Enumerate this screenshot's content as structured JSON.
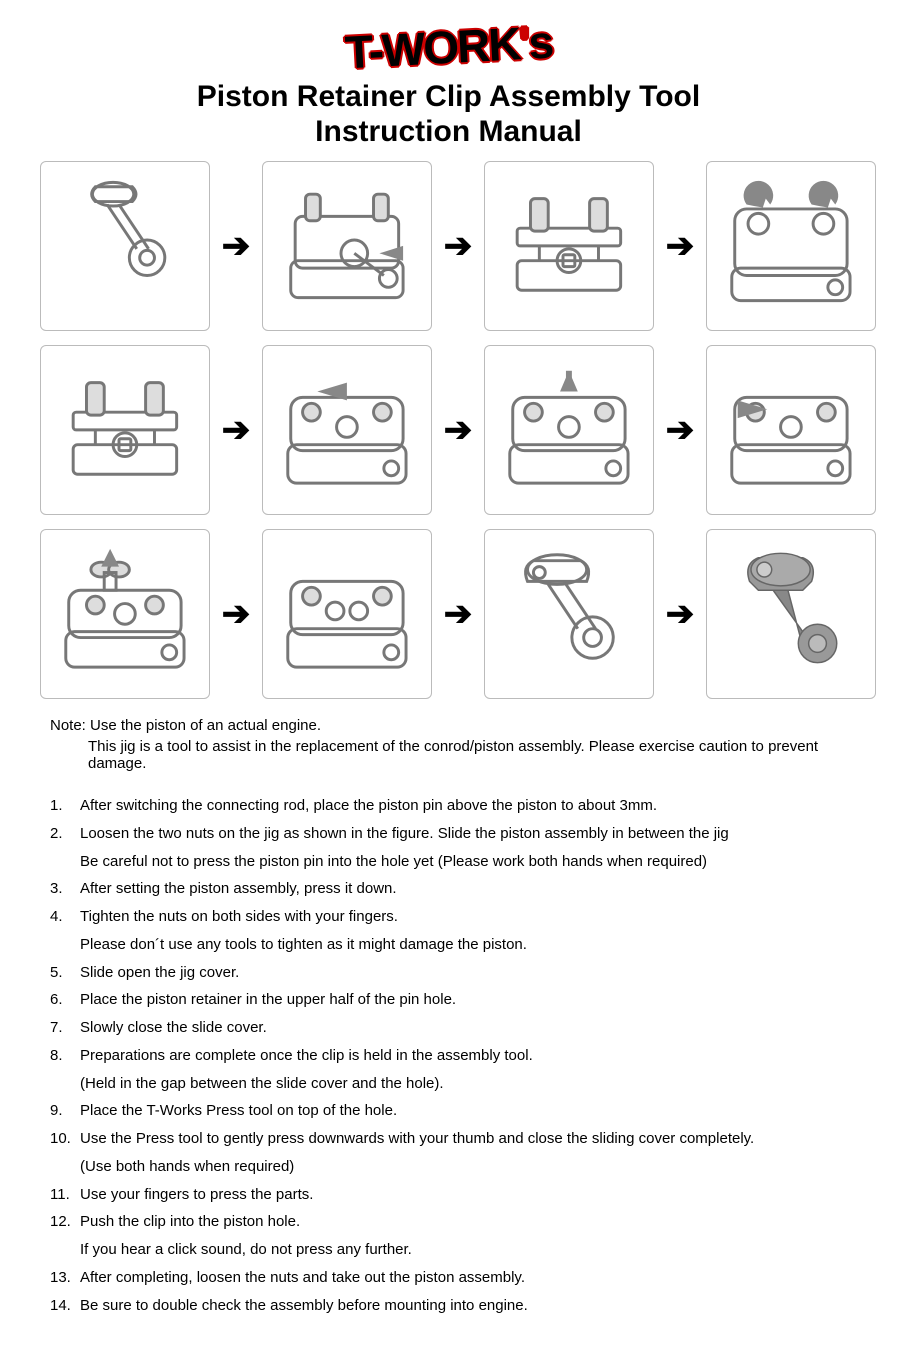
{
  "logo_text": "T-WORK's",
  "title_line1": "Piston Retainer Clip Assembly Tool",
  "title_line2": "Instruction Manual",
  "note_line1": "Note: Use the piston of an actual engine.",
  "note_line2": "This jig is a tool to assist in the replacement of the conrod/piston assembly. Please exercise caution to prevent damage.",
  "steps": [
    {
      "n": "1.",
      "t": "After switching the connecting rod, place the piston pin above the piston to about 3mm."
    },
    {
      "n": "2.",
      "t": "Loosen the two nuts on the jig as shown in the figure. Slide the piston assembly in between the jig"
    },
    {
      "n": "",
      "t": "Be careful not to press the piston pin into the hole yet (Please work both hands when required)"
    },
    {
      "n": "3.",
      "t": "After setting the piston assembly, press it down."
    },
    {
      "n": "4.",
      "t": "Tighten the nuts on both sides with your fingers."
    },
    {
      "n": "",
      "t": "Please don´t use any tools to tighten as it might damage the piston."
    },
    {
      "n": "5.",
      "t": "Slide open the jig cover."
    },
    {
      "n": "6.",
      "t": "Place the piston retainer in the upper half of the pin hole."
    },
    {
      "n": "7.",
      "t": "Slowly close the slide cover."
    },
    {
      "n": "8.",
      "t": "Preparations are complete once the clip is held in the assembly tool."
    },
    {
      "n": "",
      "t": "(Held in the gap between the slide cover and the hole)."
    },
    {
      "n": "9.",
      "t": "Place the T-Works Press tool on top of the hole."
    },
    {
      "n": "10.",
      "t": "Use the Press tool to gently press downwards with your thumb and close the sliding cover completely."
    },
    {
      "n": "",
      "t": "(Use both hands when required)"
    },
    {
      "n": "11.",
      "t": "Use your fingers to press the parts."
    },
    {
      "n": "12.",
      "t": "Push the clip into the piston hole."
    },
    {
      "n": "",
      "t": "If you hear a click sound, do not press any further."
    },
    {
      "n": "13.",
      "t": "After completing, loosen the nuts and take out the piston assembly."
    },
    {
      "n": "14.",
      "t": "Be sure to double check the assembly before mounting into engine."
    }
  ],
  "diagram": {
    "panel_border_color": "#bbbbbb",
    "panel_bg": "#ffffff",
    "stroke": "#777777",
    "stroke_dark": "#555555",
    "fill": "none",
    "render_fill": "#999999",
    "arrow_glyph": "➔"
  }
}
